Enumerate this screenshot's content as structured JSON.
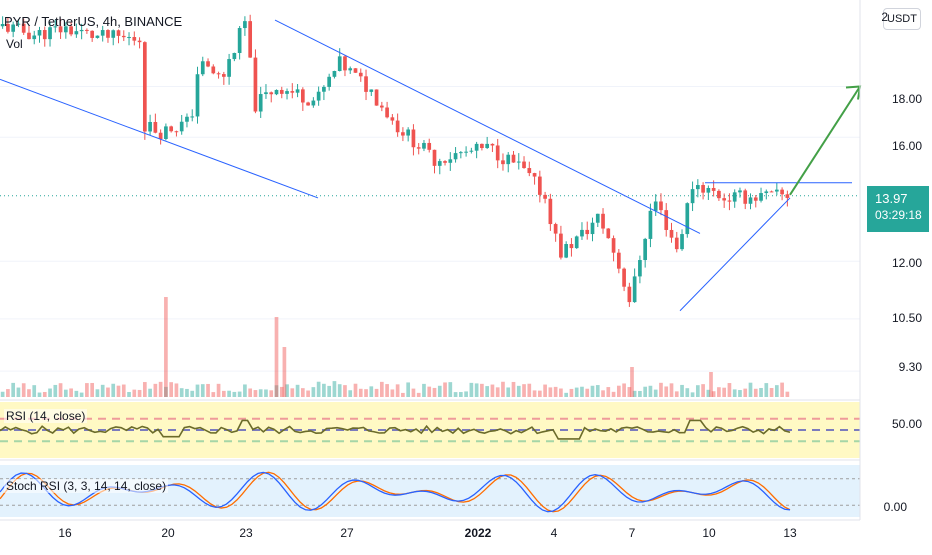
{
  "header": {
    "title": "PYR / TetherUS, 4h, BINANCE",
    "volume_label": "Vol",
    "currency_button": "USDT"
  },
  "price_axis": {
    "labels": [
      "2",
      "18.00",
      "16.00",
      "13.97",
      "12.00",
      "10.50",
      "9.30"
    ],
    "current_price": "13.97",
    "countdown": "03:29:18"
  },
  "rsi_panel": {
    "label": "RSI (14, close)",
    "axis_label": "50.00"
  },
  "stoch_panel": {
    "label": "Stoch RSI (3, 3, 14, 14, close)",
    "axis_label": "0.00"
  },
  "time_axis": {
    "labels": [
      "16",
      "20",
      "23",
      "27",
      "2022",
      "4",
      "7",
      "10",
      "13"
    ]
  },
  "colors": {
    "bull": "#26a69a",
    "bear": "#ef5350",
    "trendline": "#2962ff",
    "arrow": "#43a047",
    "rsi_line": "#6b6b2a",
    "stoch_k": "#2962ff",
    "stoch_d": "#ff6d00",
    "rsi_band": "#fff9c4",
    "stoch_band": "#e3f2fd"
  },
  "chart_data": {
    "type": "candlestick",
    "symbol": "PYR / TetherUS",
    "interval": "4h",
    "exchange": "BINANCE",
    "y_ticks": [
      18.0,
      16.0,
      13.97,
      12.0,
      10.5,
      9.3
    ],
    "x_ticks": [
      "16",
      "20",
      "23",
      "27",
      "2022",
      "4",
      "7",
      "10",
      "13"
    ],
    "price_keyframes": [
      {
        "x": 0,
        "p": 20.7
      },
      {
        "x": 0.04,
        "p": 20.3
      },
      {
        "x": 0.08,
        "p": 20.6
      },
      {
        "x": 0.12,
        "p": 20.2
      },
      {
        "x": 0.175,
        "p": 20.1
      },
      {
        "x": 0.18,
        "p": 16.5
      },
      {
        "x": 0.2,
        "p": 16.2
      },
      {
        "x": 0.24,
        "p": 16.6
      },
      {
        "x": 0.25,
        "p": 19.0
      },
      {
        "x": 0.28,
        "p": 18.3
      },
      {
        "x": 0.31,
        "p": 21.0
      },
      {
        "x": 0.32,
        "p": 17.2
      },
      {
        "x": 0.35,
        "p": 18.0
      },
      {
        "x": 0.4,
        "p": 17.4
      },
      {
        "x": 0.43,
        "p": 19.0
      },
      {
        "x": 0.47,
        "p": 17.8
      },
      {
        "x": 0.5,
        "p": 16.5
      },
      {
        "x": 0.55,
        "p": 15.2
      },
      {
        "x": 0.62,
        "p": 15.6
      },
      {
        "x": 0.66,
        "p": 14.9
      },
      {
        "x": 0.69,
        "p": 14.0
      },
      {
        "x": 0.71,
        "p": 12.2
      },
      {
        "x": 0.74,
        "p": 12.8
      },
      {
        "x": 0.76,
        "p": 13.3
      },
      {
        "x": 0.78,
        "p": 12.2
      },
      {
        "x": 0.8,
        "p": 10.9
      },
      {
        "x": 0.83,
        "p": 13.9
      },
      {
        "x": 0.86,
        "p": 12.3
      },
      {
        "x": 0.88,
        "p": 14.4
      },
      {
        "x": 0.92,
        "p": 13.9
      },
      {
        "x": 1,
        "p": 13.97
      }
    ],
    "projection": {
      "from": 14.0,
      "to": 18.0
    }
  }
}
